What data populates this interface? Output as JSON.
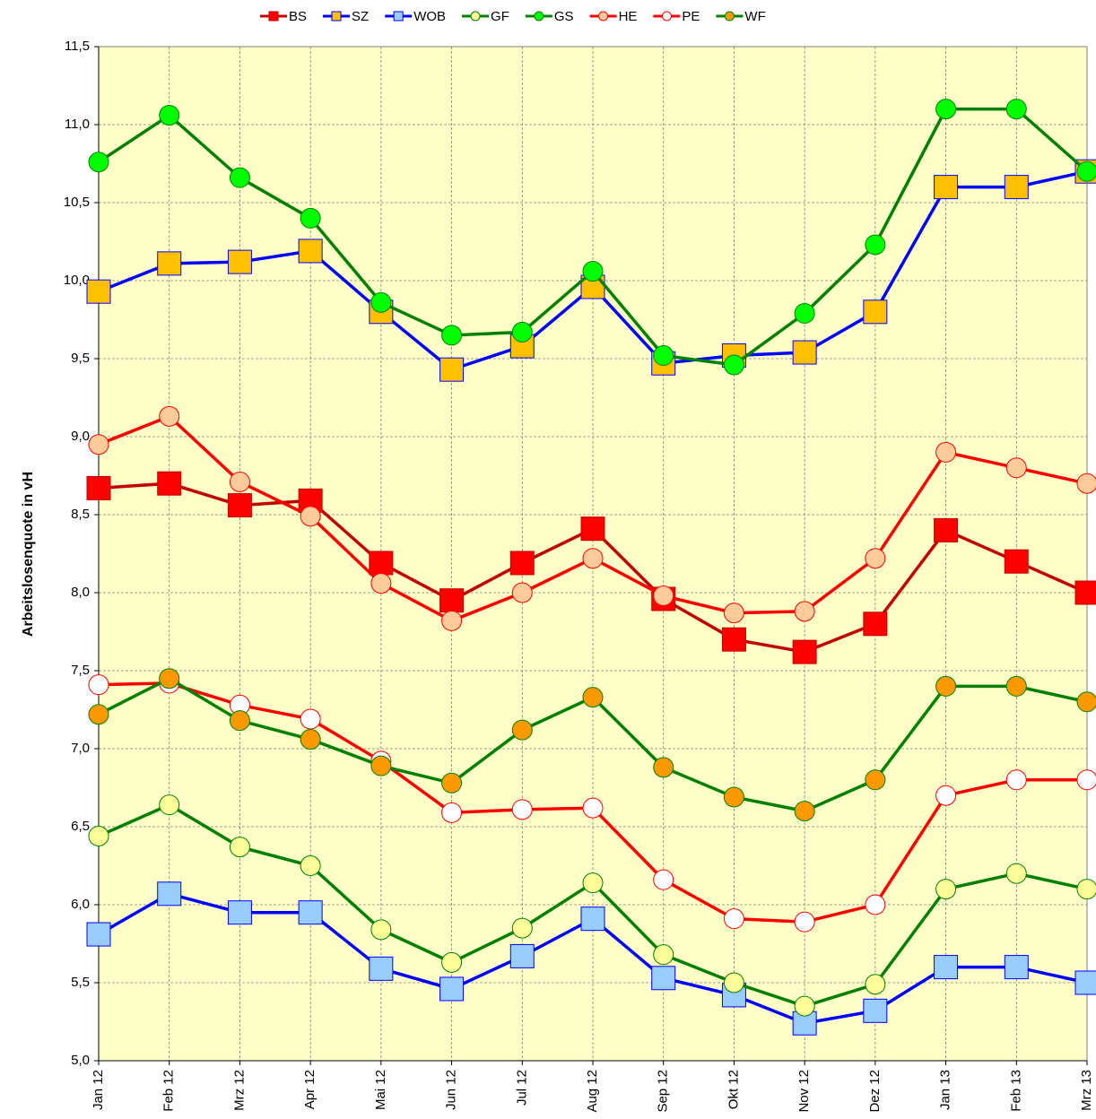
{
  "chart_data": {
    "type": "line",
    "y_label": "Arbeitslosenquote in vH",
    "categories": [
      "Jan 12",
      "Feb 12",
      "Mrz 12",
      "Apr 12",
      "Mai 12",
      "Jun 12",
      "Jul 12",
      "Aug 12",
      "Sep 12",
      "Okt 12",
      "Nov 12",
      "Dez 12",
      "Jan 13",
      "Feb 13",
      "Mrz 13"
    ],
    "ylim": [
      5.0,
      11.5
    ],
    "yticks": [
      {
        "value": 5.0,
        "label": "5,0"
      },
      {
        "value": 5.5,
        "label": "5,5"
      },
      {
        "value": 6.0,
        "label": "6,0"
      },
      {
        "value": 6.5,
        "label": "6,5"
      },
      {
        "value": 7.0,
        "label": "7,0"
      },
      {
        "value": 7.5,
        "label": "7,5"
      },
      {
        "value": 8.0,
        "label": "8,0"
      },
      {
        "value": 8.5,
        "label": "8,5"
      },
      {
        "value": 9.0,
        "label": "9,0"
      },
      {
        "value": 9.5,
        "label": "9,5"
      },
      {
        "value": 10.0,
        "label": "10,0"
      },
      {
        "value": 10.5,
        "label": "10,5"
      },
      {
        "value": 11.0,
        "label": "11,0"
      },
      {
        "value": 11.5,
        "label": "11,5"
      }
    ],
    "grid": true,
    "legend": "top",
    "series": [
      {
        "name": "BS",
        "color": "#c00000",
        "marker": "square",
        "marker_color": "#ff0000",
        "values": [
          8.67,
          8.7,
          8.56,
          8.59,
          8.19,
          7.95,
          8.19,
          8.41,
          7.96,
          7.7,
          7.62,
          7.8,
          8.4,
          8.2,
          8.0
        ]
      },
      {
        "name": "SZ",
        "color": "#0000ff",
        "marker": "square",
        "marker_color": "#ffc000",
        "values": [
          9.93,
          10.11,
          10.12,
          10.19,
          9.8,
          9.43,
          9.58,
          9.96,
          9.47,
          9.52,
          9.54,
          9.8,
          10.6,
          10.6,
          10.7
        ]
      },
      {
        "name": "WOB",
        "color": "#0000ff",
        "marker": "square",
        "marker_color": "#99ccff",
        "values": [
          5.81,
          6.07,
          5.95,
          5.95,
          5.59,
          5.46,
          5.67,
          5.91,
          5.53,
          5.42,
          5.24,
          5.32,
          5.6,
          5.6,
          5.5
        ]
      },
      {
        "name": "GF",
        "color": "#008000",
        "marker": "circle",
        "marker_color": "#ffff99",
        "values": [
          6.44,
          6.64,
          6.37,
          6.25,
          5.84,
          5.63,
          5.85,
          6.14,
          5.68,
          5.5,
          5.35,
          5.49,
          6.1,
          6.2,
          6.1
        ]
      },
      {
        "name": "GS",
        "color": "#008000",
        "marker": "circle",
        "marker_color": "#00ff00",
        "values": [
          10.76,
          11.06,
          10.66,
          10.4,
          9.86,
          9.65,
          9.67,
          10.06,
          9.52,
          9.46,
          9.79,
          10.23,
          11.1,
          11.1,
          10.7
        ]
      },
      {
        "name": "HE",
        "color": "#ff0000",
        "marker": "circle",
        "marker_color": "#ffcc99",
        "values": [
          8.95,
          9.13,
          8.71,
          8.49,
          8.06,
          7.82,
          8.0,
          8.22,
          7.98,
          7.87,
          7.88,
          8.22,
          8.9,
          8.8,
          8.7
        ]
      },
      {
        "name": "PE",
        "color": "#ff0000",
        "marker": "circle",
        "marker_color": "#ffffff",
        "values": [
          7.41,
          7.42,
          7.28,
          7.19,
          6.92,
          6.59,
          6.61,
          6.62,
          6.16,
          5.91,
          5.89,
          6.0,
          6.7,
          6.8,
          6.8
        ]
      },
      {
        "name": "WF",
        "color": "#008000",
        "marker": "circle",
        "marker_color": "#ff9900",
        "values": [
          7.22,
          7.45,
          7.18,
          7.06,
          6.89,
          6.78,
          7.12,
          7.33,
          6.88,
          6.69,
          6.6,
          6.8,
          7.4,
          7.4,
          7.3
        ]
      }
    ]
  }
}
